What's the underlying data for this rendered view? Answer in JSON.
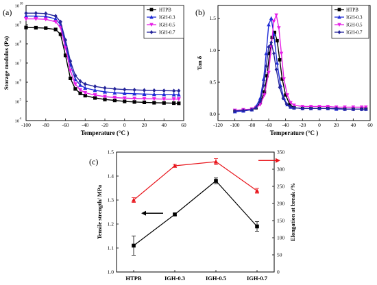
{
  "chart_data": [
    {
      "panel": "(a)",
      "type": "line",
      "title": "",
      "xlabel": "Temperature (°C )",
      "ylabel": "Storage modulus (Pa)",
      "xlim": [
        -100,
        60
      ],
      "ylim_log10": [
        4,
        10
      ],
      "yscale": "log",
      "x_ticks": [
        "-100",
        "-80",
        "-60",
        "-40",
        "-20",
        "0",
        "20",
        "40",
        "60"
      ],
      "y_ticks": [
        {
          "base": "10",
          "exp": "4"
        },
        {
          "base": "10",
          "exp": "5"
        },
        {
          "base": "10",
          "exp": "6"
        },
        {
          "base": "10",
          "exp": "7"
        },
        {
          "base": "10",
          "exp": "8"
        },
        {
          "base": "10",
          "exp": "9"
        },
        {
          "base": "10",
          "exp": "10"
        }
      ],
      "legend_position": "top-right",
      "x": [
        -100,
        -90,
        -80,
        -70,
        -65,
        -60,
        -55,
        -50,
        -45,
        -40,
        -30,
        -20,
        -10,
        0,
        10,
        20,
        30,
        40,
        50,
        55
      ],
      "series": [
        {
          "name": "HTPB",
          "color": "#000000",
          "marker": "square",
          "log10_values": [
            8.85,
            8.84,
            8.82,
            8.75,
            8.5,
            7.4,
            6.2,
            5.65,
            5.42,
            5.3,
            5.18,
            5.1,
            5.05,
            5.0,
            4.97,
            4.95,
            4.93,
            4.92,
            4.91,
            4.9
          ]
        },
        {
          "name": "IGH-0.3",
          "color": "#1f2bd6",
          "marker": "triangle-up",
          "log10_values": [
            9.45,
            9.45,
            9.43,
            9.3,
            9.0,
            8.0,
            6.9,
            6.15,
            5.85,
            5.7,
            5.58,
            5.5,
            5.45,
            5.42,
            5.4,
            5.38,
            5.37,
            5.36,
            5.35,
            5.35
          ]
        },
        {
          "name": "IGH-0.5",
          "color": "#e61ee6",
          "marker": "triangle-down",
          "log10_values": [
            9.3,
            9.3,
            9.28,
            9.15,
            8.85,
            7.8,
            6.6,
            5.9,
            5.6,
            5.45,
            5.33,
            5.25,
            5.2,
            5.17,
            5.15,
            5.14,
            5.13,
            5.12,
            5.12,
            5.12
          ]
        },
        {
          "name": "IGH-0.7",
          "color": "#24249a",
          "marker": "diamond",
          "log10_values": [
            9.6,
            9.6,
            9.58,
            9.45,
            9.15,
            8.2,
            7.1,
            6.35,
            6.05,
            5.9,
            5.78,
            5.7,
            5.65,
            5.62,
            5.6,
            5.58,
            5.57,
            5.56,
            5.55,
            5.55
          ]
        }
      ]
    },
    {
      "panel": "(b)",
      "type": "line",
      "title": "",
      "xlabel": "Temperature (°C )",
      "ylabel": "Tan δ",
      "xlim": [
        -120,
        60
      ],
      "ylim": [
        -0.1,
        1.7
      ],
      "x_ticks": [
        "-120",
        "-100",
        "-80",
        "-60",
        "-40",
        "-20",
        "0",
        "20",
        "40",
        "60"
      ],
      "y_ticks": [
        "0.0",
        "0.5",
        "1.0",
        "1.5"
      ],
      "legend_position": "top-right",
      "series": [
        {
          "name": "HTPB",
          "color": "#000000",
          "marker": "square",
          "x": [
            -100,
            -90,
            -80,
            -75,
            -70,
            -65,
            -62,
            -59,
            -56,
            -53,
            -50,
            -47,
            -44,
            -40,
            -35,
            -30,
            -20,
            -10,
            0,
            10,
            20,
            30,
            40,
            50,
            55
          ],
          "y": [
            0.05,
            0.06,
            0.07,
            0.1,
            0.18,
            0.35,
            0.6,
            0.95,
            1.2,
            1.28,
            1.15,
            0.85,
            0.55,
            0.3,
            0.15,
            0.1,
            0.09,
            0.09,
            0.09,
            0.09,
            0.09,
            0.08,
            0.08,
            0.08,
            0.08
          ]
        },
        {
          "name": "IGH-0.3",
          "color": "#1f2bd6",
          "marker": "triangle-up",
          "x": [
            -100,
            -90,
            -80,
            -75,
            -70,
            -66,
            -63,
            -60,
            -57,
            -54,
            -50,
            -46,
            -42,
            -38,
            -34,
            -30,
            -20,
            -10,
            0,
            10,
            20,
            30,
            40,
            50,
            55
          ],
          "y": [
            0.04,
            0.05,
            0.07,
            0.12,
            0.25,
            0.55,
            0.95,
            1.4,
            1.5,
            1.25,
            0.8,
            0.45,
            0.25,
            0.15,
            0.11,
            0.1,
            0.09,
            0.09,
            0.09,
            0.09,
            0.08,
            0.08,
            0.08,
            0.08,
            0.08
          ]
        },
        {
          "name": "IGH-0.5",
          "color": "#e61ee6",
          "marker": "triangle-down",
          "x": [
            -100,
            -90,
            -80,
            -75,
            -70,
            -65,
            -60,
            -57,
            -54,
            -51,
            -48,
            -45,
            -42,
            -38,
            -34,
            -30,
            -20,
            -10,
            0,
            10,
            20,
            30,
            40,
            50,
            55
          ],
          "y": [
            0.06,
            0.07,
            0.08,
            0.1,
            0.15,
            0.3,
            0.65,
            1.05,
            1.45,
            1.55,
            1.35,
            0.95,
            0.55,
            0.3,
            0.18,
            0.14,
            0.12,
            0.12,
            0.12,
            0.12,
            0.11,
            0.11,
            0.11,
            0.11,
            0.11
          ]
        },
        {
          "name": "IGH-0.7",
          "color": "#24249a",
          "marker": "diamond",
          "x": [
            -100,
            -90,
            -80,
            -75,
            -70,
            -66,
            -63,
            -60,
            -57,
            -54,
            -51,
            -47,
            -43,
            -39,
            -35,
            -30,
            -20,
            -10,
            0,
            10,
            20,
            30,
            40,
            50,
            55
          ],
          "y": [
            0.05,
            0.06,
            0.07,
            0.1,
            0.2,
            0.45,
            0.75,
            1.05,
            1.12,
            0.95,
            0.7,
            0.42,
            0.25,
            0.16,
            0.12,
            0.1,
            0.09,
            0.09,
            0.09,
            0.09,
            0.09,
            0.08,
            0.08,
            0.08,
            0.08
          ]
        }
      ]
    },
    {
      "panel": "(c)",
      "type": "line",
      "title": "",
      "categories": [
        "HTPB",
        "IGH-0.3",
        "IGH-0.5",
        "IGH-0.7"
      ],
      "ylabel_left": "Tensile strength/ MPa",
      "ylabel_right": "Elongation at break /%",
      "ylim_left": [
        1.0,
        1.5
      ],
      "ylim_right": [
        0,
        350
      ],
      "y_ticks_left": [
        "1.0",
        "1.1",
        "1.2",
        "1.3",
        "1.4",
        "1.5"
      ],
      "y_ticks_right": [
        "0",
        "50",
        "100",
        "150",
        "200",
        "250",
        "300",
        "350"
      ],
      "series": [
        {
          "name": "Tensile strength",
          "axis": "left",
          "color": "#000000",
          "marker": "square",
          "values": [
            1.11,
            1.24,
            1.38,
            1.19
          ],
          "errors": [
            0.04,
            0.005,
            0.012,
            0.02
          ]
        },
        {
          "name": "Elongation at break",
          "axis": "right",
          "color": "#e8141b",
          "marker": "triangle-up",
          "values": [
            210,
            310,
            322,
            237
          ],
          "errors": [
            7,
            4,
            9,
            7
          ]
        }
      ],
      "arrows": [
        {
          "direction": "left",
          "color": "#000000",
          "category_pos": 0.45,
          "value_left": 1.245
        },
        {
          "direction": "right",
          "color": "#e8141b",
          "category_pos": 3.3,
          "value_left": 1.465
        }
      ]
    }
  ]
}
